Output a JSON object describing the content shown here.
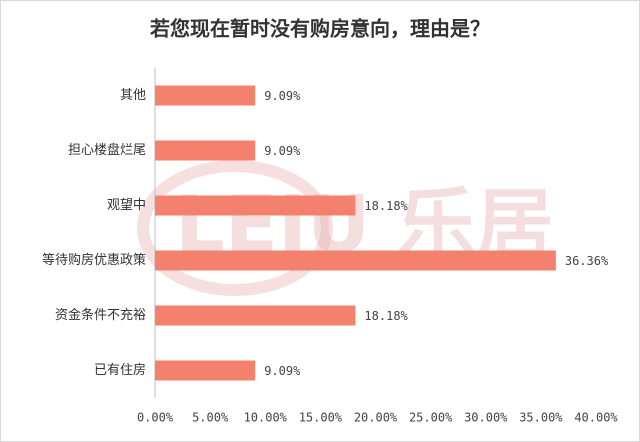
{
  "chart_data": {
    "type": "bar",
    "orientation": "horizontal",
    "title": "若您现在暂时没有购房意向，理由是？",
    "watermark": "LEJU 乐居",
    "categories": [
      "其他",
      "担心楼盘烂尾",
      "观望中",
      "等待购房优惠政策",
      "资金条件不充裕",
      "已有住房"
    ],
    "values": [
      9.09,
      9.09,
      18.18,
      36.36,
      18.18,
      9.09
    ],
    "value_labels": [
      "9.09%",
      "9.09%",
      "18.18%",
      "36.36%",
      "18.18%",
      "9.09%"
    ],
    "color": "#f4806e",
    "xlim": [
      0,
      40
    ],
    "xticks": [
      {
        "value": 0,
        "label": "0.00%"
      },
      {
        "value": 5,
        "label": "5.00%"
      },
      {
        "value": 10,
        "label": "10.00%"
      },
      {
        "value": 15,
        "label": "15.00%"
      },
      {
        "value": 20,
        "label": "20.00%"
      },
      {
        "value": 25,
        "label": "25.00%"
      },
      {
        "value": 30,
        "label": "30.00%"
      },
      {
        "value": 35,
        "label": "35.00%"
      },
      {
        "value": 40,
        "label": "40.00%"
      }
    ],
    "grid": false
  }
}
